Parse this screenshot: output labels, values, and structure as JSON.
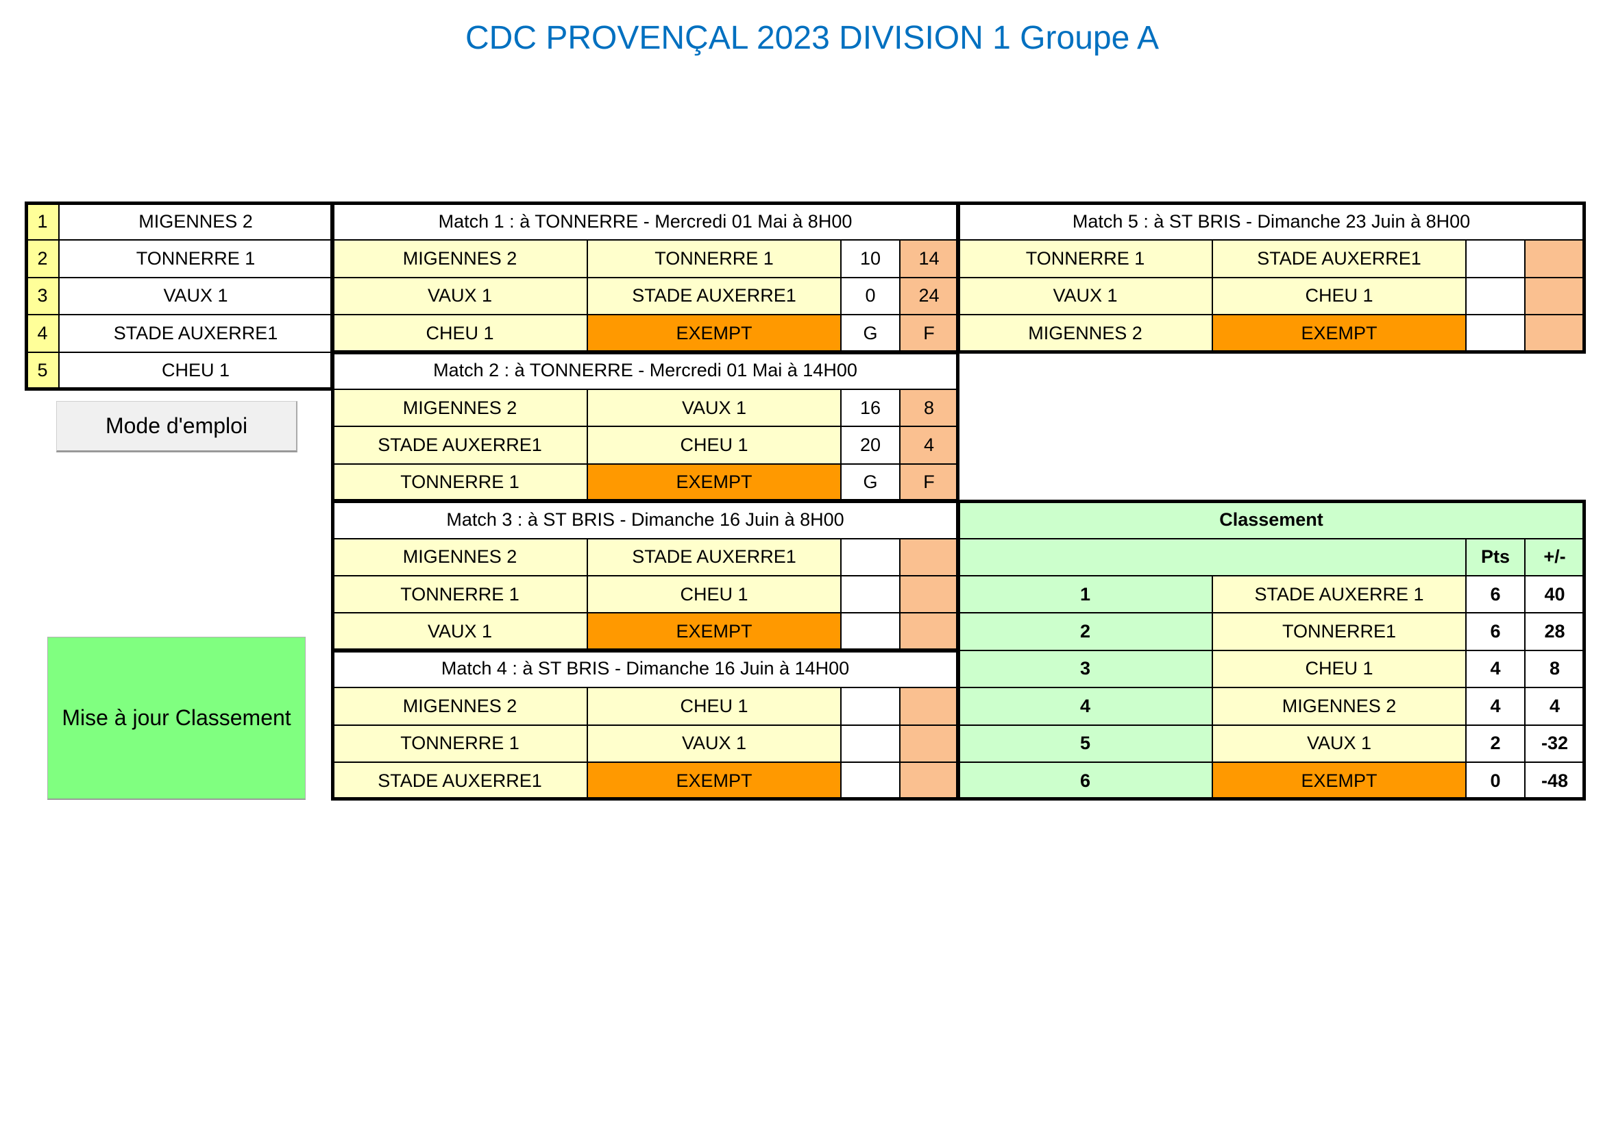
{
  "title": "CDC PROVENÇAL 2023 DIVISION 1  Groupe A",
  "colors": {
    "title": "#0070c0",
    "team_bg": "#ffffcc",
    "exempt_bg": "#ff9900",
    "score_bg": "#fac090",
    "index_bg": "#ffff99",
    "ranking_bg": "#ccffcc",
    "button_green": "#80ff80",
    "button_grey": "#f0f0f0"
  },
  "teams": [
    {
      "num": "1",
      "name": "MIGENNES 2"
    },
    {
      "num": "2",
      "name": "TONNERRE 1"
    },
    {
      "num": "3",
      "name": "VAUX 1"
    },
    {
      "num": "4",
      "name": "STADE AUXERRE1"
    },
    {
      "num": "5",
      "name": "CHEU 1"
    }
  ],
  "buttons": {
    "mode_emploi": "Mode d'emploi",
    "mise_a_jour": "Mise à jour Classement"
  },
  "matches": [
    {
      "header": "Match 1 : à TONNERRE - Mercredi 01 Mai à 8H00",
      "games": [
        {
          "home": "MIGENNES 2",
          "away": "TONNERRE 1",
          "s1": "10",
          "s2": "14"
        },
        {
          "home": "VAUX 1",
          "away": "STADE AUXERRE1",
          "s1": "0",
          "s2": "24"
        },
        {
          "home": "CHEU 1",
          "away": "EXEMPT",
          "s1": "G",
          "s2": "F"
        }
      ]
    },
    {
      "header": "Match 2 : à TONNERRE - Mercredi 01 Mai  à 14H00",
      "games": [
        {
          "home": "MIGENNES 2",
          "away": "VAUX 1",
          "s1": "16",
          "s2": "8"
        },
        {
          "home": "STADE AUXERRE1",
          "away": "CHEU 1",
          "s1": "20",
          "s2": "4"
        },
        {
          "home": "TONNERRE 1",
          "away": "EXEMPT",
          "s1": "G",
          "s2": "F"
        }
      ]
    },
    {
      "header": "Match 3 : à ST BRIS - Dimanche 16 Juin à 8H00",
      "games": [
        {
          "home": "MIGENNES 2",
          "away": "STADE AUXERRE1",
          "s1": "",
          "s2": ""
        },
        {
          "home": "TONNERRE 1",
          "away": "CHEU 1",
          "s1": "",
          "s2": ""
        },
        {
          "home": "VAUX 1",
          "away": "EXEMPT",
          "s1": "",
          "s2": ""
        }
      ]
    },
    {
      "header": "Match 4 : à ST BRIS - Dimanche 16 Juin à 14H00",
      "games": [
        {
          "home": "MIGENNES 2",
          "away": "CHEU 1",
          "s1": "",
          "s2": ""
        },
        {
          "home": "TONNERRE 1",
          "away": "VAUX 1",
          "s1": "",
          "s2": ""
        },
        {
          "home": "STADE AUXERRE1",
          "away": "EXEMPT",
          "s1": "",
          "s2": ""
        }
      ]
    },
    {
      "header": "Match 5 : à ST BRIS - Dimanche 23 Juin à 8H00",
      "games": [
        {
          "home": "TONNERRE 1",
          "away": "STADE AUXERRE1",
          "s1": "",
          "s2": ""
        },
        {
          "home": "VAUX 1",
          "away": "CHEU 1",
          "s1": "",
          "s2": ""
        },
        {
          "home": "MIGENNES 2",
          "away": "EXEMPT",
          "s1": "",
          "s2": ""
        }
      ]
    }
  ],
  "classement": {
    "title": "Classement",
    "col_pts": "Pts",
    "col_diff": "+/-",
    "rows": [
      {
        "rank": "1",
        "team": "STADE AUXERRE 1",
        "pts": "6",
        "diff": "40"
      },
      {
        "rank": "2",
        "team": "TONNERRE1",
        "pts": "6",
        "diff": "28"
      },
      {
        "rank": "3",
        "team": "CHEU 1",
        "pts": "4",
        "diff": "8"
      },
      {
        "rank": "4",
        "team": "MIGENNES 2",
        "pts": "4",
        "diff": "4"
      },
      {
        "rank": "5",
        "team": "VAUX 1",
        "pts": "2",
        "diff": "-32"
      },
      {
        "rank": "6",
        "team": "EXEMPT",
        "pts": "0",
        "diff": "-48"
      }
    ]
  }
}
